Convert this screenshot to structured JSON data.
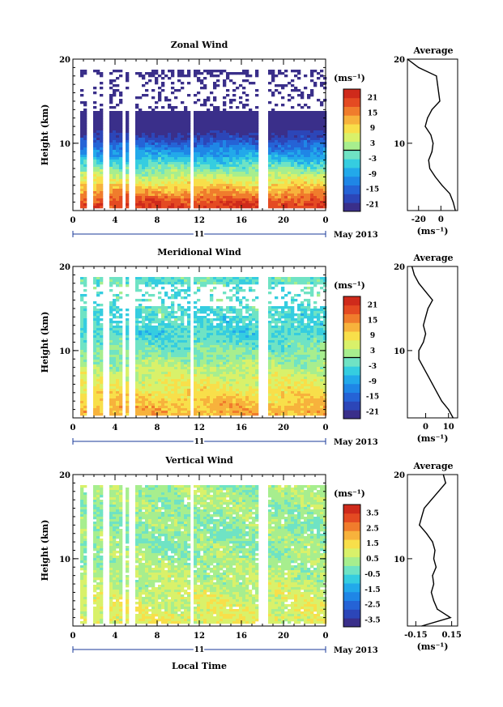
{
  "chart_data": [
    {
      "type": "heatmap",
      "title": "Zonal Wind",
      "ylabel": "Height (km)",
      "xlabel": "",
      "ylim": [
        2,
        20
      ],
      "xlim": [
        0,
        24
      ],
      "x_ticks": [
        "0",
        "4",
        "8",
        "12",
        "16",
        "20",
        "0"
      ],
      "y_ticks": [
        "10",
        "20"
      ],
      "date_day": "11",
      "date_label": "May 2013",
      "colorbar": {
        "unit": "(ms⁻¹)",
        "ticks": [
          "21",
          "15",
          "9",
          "3",
          "-3",
          "-9",
          "-15",
          "-21"
        ],
        "range": [
          -24,
          24
        ],
        "zero_contour": true
      },
      "profile": {
        "title": "Average",
        "xlabel": "(ms⁻¹)",
        "x_ticks": [
          "-20",
          "0"
        ],
        "xlim": [
          -30,
          15
        ],
        "height": [
          2,
          3,
          4,
          5,
          6,
          7,
          8,
          9,
          10,
          11,
          12,
          13,
          14,
          15,
          16,
          17,
          18,
          19,
          20
        ],
        "values": [
          13,
          11,
          8,
          1,
          -5,
          -10,
          -11,
          -8,
          -7,
          -9,
          -14,
          -12,
          -8,
          -1,
          -2,
          -3,
          -4,
          -20,
          -30
        ]
      },
      "structure": {
        "low": 20,
        "low_height": 3,
        "mid": -25,
        "mid_height": 12,
        "top": -27,
        "top_height": 19,
        "data_top": 19.6,
        "clip_min": -21,
        "clip_max": 21
      }
    },
    {
      "type": "heatmap",
      "title": "Meridional Wind",
      "ylabel": "Height (km)",
      "xlabel": "",
      "ylim": [
        2,
        20
      ],
      "xlim": [
        0,
        24
      ],
      "x_ticks": [
        "0",
        "4",
        "8",
        "12",
        "16",
        "20",
        "0"
      ],
      "y_ticks": [
        "10",
        "20"
      ],
      "date_day": "11",
      "date_label": "May 2013",
      "colorbar": {
        "unit": "(ms⁻¹)",
        "ticks": [
          "21",
          "15",
          "9",
          "3",
          "-3",
          "-9",
          "-15",
          "-21"
        ],
        "range": [
          -24,
          24
        ],
        "zero_contour": true
      },
      "profile": {
        "title": "Average",
        "xlabel": "(ms⁻¹)",
        "x_ticks": [
          "0",
          "10"
        ],
        "xlim": [
          -8,
          14
        ],
        "height": [
          2,
          3,
          4,
          5,
          6,
          7,
          8,
          9,
          10,
          11,
          12,
          13,
          14,
          15,
          16,
          17,
          18,
          19,
          20
        ],
        "values": [
          12,
          10,
          7,
          5,
          3,
          1,
          -1,
          -3,
          -3,
          -1,
          0,
          -1,
          0,
          1,
          3,
          0,
          -3,
          -5,
          -6
        ]
      },
      "structure": {
        "low": 12,
        "low_height": 3,
        "mid": -4,
        "mid_height": 12,
        "top": -2,
        "top_height": 19,
        "data_top": 19.2,
        "clip_min": -21,
        "clip_max": 21
      }
    },
    {
      "type": "heatmap",
      "title": "Vertical Wind",
      "ylabel": "Height (km)",
      "xlabel": "Local Time",
      "ylim": [
        2,
        20
      ],
      "xlim": [
        0,
        24
      ],
      "x_ticks": [
        "0",
        "4",
        "8",
        "12",
        "16",
        "20",
        "0"
      ],
      "y_ticks": [
        "10",
        "20"
      ],
      "date_day": "11",
      "date_label": "May 2013",
      "colorbar": {
        "unit": "(ms⁻¹)",
        "ticks": [
          "3.5",
          "2.5",
          "1.5",
          "0.5",
          "-0.5",
          "-1.5",
          "-2.5",
          "-3.5"
        ],
        "range": [
          -4,
          4
        ],
        "zero_contour": false
      },
      "profile": {
        "title": "Average",
        "xlabel": "(ms⁻¹)",
        "x_ticks": [
          "-0.15",
          "0.15"
        ],
        "xlim": [
          -0.22,
          0.2
        ],
        "height": [
          2,
          3,
          4,
          5,
          6,
          7,
          8,
          9,
          10,
          11,
          12,
          13,
          14,
          15,
          16,
          17,
          18,
          19,
          20
        ],
        "values": [
          -0.1,
          0.14,
          0.03,
          0.0,
          -0.02,
          0.0,
          -0.01,
          0.02,
          0.0,
          0.01,
          -0.01,
          -0.06,
          -0.12,
          -0.1,
          -0.08,
          -0.02,
          0.04,
          0.1,
          0.08
        ]
      },
      "structure": {
        "low": 1.0,
        "low_height": 3,
        "mid": 0.1,
        "mid_height": 12,
        "top": 0.3,
        "top_height": 19,
        "data_top": 20,
        "clip_min": -3.8,
        "clip_max": 3.8
      }
    }
  ]
}
